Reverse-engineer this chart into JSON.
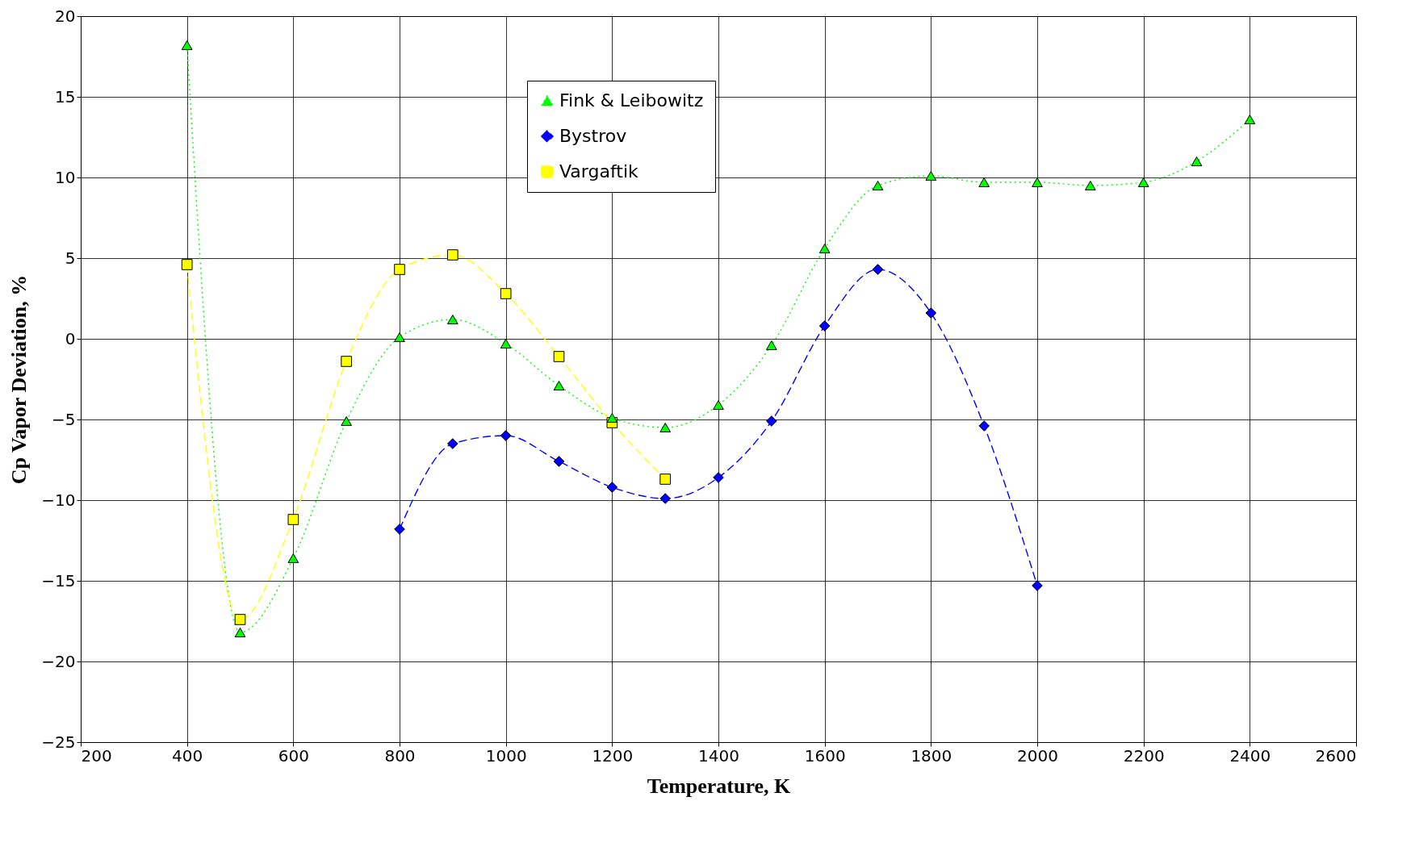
{
  "chart_data": {
    "type": "line",
    "xlabel": "Temperature, K",
    "ylabel": "Cp Vapor Deviation, %",
    "xlim": [
      200,
      2600
    ],
    "xticks": [
      200,
      400,
      600,
      800,
      1000,
      1200,
      1400,
      1600,
      1800,
      2000,
      2200,
      2400,
      2600
    ],
    "ylim": [
      -25,
      20
    ],
    "yticks": [
      -25,
      -20,
      -15,
      -10,
      -5,
      0,
      5,
      10,
      15,
      20
    ],
    "grid": true,
    "legend": "top",
    "series": [
      {
        "name": "Fink & Leibowitz",
        "color": "#00ff00",
        "marker": "triangle",
        "line_style": "dotted",
        "x": [
          400,
          500,
          600,
          700,
          800,
          900,
          1000,
          1100,
          1200,
          1300,
          1400,
          1500,
          1600,
          1700,
          1800,
          1900,
          2000,
          2100,
          2200,
          2300,
          2400
        ],
        "values": [
          18.2,
          -18.2,
          -13.6,
          -5.1,
          0.1,
          1.2,
          -0.3,
          -2.9,
          -4.9,
          -5.5,
          -4.1,
          -0.4,
          5.6,
          9.5,
          10.1,
          9.7,
          9.7,
          9.5,
          9.7,
          11.0,
          13.6
        ]
      },
      {
        "name": "Bystrov",
        "color": "#0000ff",
        "marker": "diamond",
        "line_style": "dashed",
        "x": [
          800,
          900,
          1000,
          1100,
          1200,
          1300,
          1400,
          1500,
          1600,
          1700,
          1800,
          1900,
          2000
        ],
        "values": [
          -11.8,
          -6.5,
          -6.0,
          -7.6,
          -9.2,
          -9.9,
          -8.6,
          -5.1,
          0.8,
          4.3,
          1.6,
          -5.4,
          -15.3
        ]
      },
      {
        "name": "Vargaftik",
        "color": "#ffff00",
        "marker": "square",
        "line_style": "dashed",
        "x": [
          400,
          500,
          600,
          700,
          800,
          900,
          1000,
          1100,
          1200,
          1300
        ],
        "values": [
          4.6,
          -17.4,
          -11.2,
          -1.4,
          4.3,
          5.2,
          2.8,
          -1.1,
          -5.2,
          -8.7
        ]
      }
    ]
  }
}
